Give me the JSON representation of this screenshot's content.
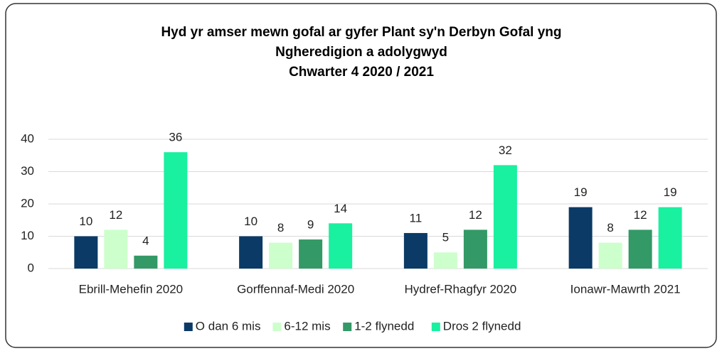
{
  "chart_data": {
    "type": "bar",
    "title": [
      "Hyd yr amser mewn gofal ar gyfer Plant sy'n Derbyn Gofal yng",
      "Ngheredigion a adolygwyd",
      "Chwarter 4 2020 / 2021"
    ],
    "categories": [
      "Ebrill-Mehefin 2020",
      "Gorffennaf-Medi 2020",
      "Hydref-Rhagfyr 2020",
      "Ionawr-Mawrth 2021"
    ],
    "series": [
      {
        "name": "O dan 6 mis",
        "color": "#0b3a66",
        "values": [
          10,
          10,
          11,
          19
        ]
      },
      {
        "name": "6-12 mis",
        "color": "#ccffcc",
        "values": [
          12,
          8,
          5,
          8
        ]
      },
      {
        "name": "1-2 flynedd",
        "color": "#339966",
        "values": [
          4,
          9,
          12,
          12
        ]
      },
      {
        "name": "Dros 2 flynedd",
        "color": "#19f0a0",
        "values": [
          36,
          14,
          32,
          19
        ]
      }
    ],
    "ylim": [
      0,
      40
    ],
    "yticks": [
      0,
      10,
      20,
      30,
      40
    ],
    "grid": true,
    "legend": "bottom"
  }
}
